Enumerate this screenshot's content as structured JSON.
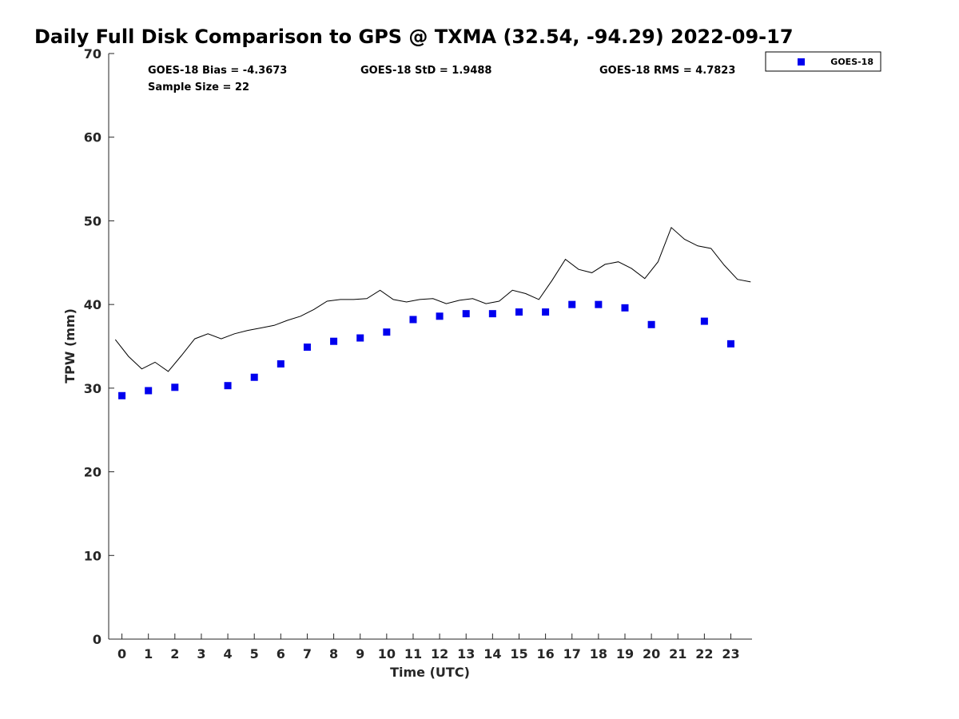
{
  "chart_data": {
    "type": "scatter",
    "title": "Daily Full Disk Comparison to GPS @ TXMA (32.54, -94.29) 2022-09-17",
    "xlabel": "Time (UTC)",
    "ylabel": "TPW (mm)",
    "xlim": [
      -0.5,
      23.8
    ],
    "ylim": [
      0,
      70
    ],
    "xticks": [
      0,
      1,
      2,
      3,
      4,
      5,
      6,
      7,
      8,
      9,
      10,
      11,
      12,
      13,
      14,
      15,
      16,
      17,
      18,
      19,
      20,
      21,
      22,
      23
    ],
    "yticks": [
      0,
      10,
      20,
      30,
      40,
      50,
      60,
      70
    ],
    "grid": false,
    "legend_position": "top-right (outside plot)",
    "stats": {
      "bias": "GOES-18 Bias = -4.3673",
      "std": "GOES-18 StD = 1.9488",
      "rms": "GOES-18 RMS = 4.7823",
      "sample": "Sample Size = 22"
    },
    "series": [
      {
        "name": "GOES-18",
        "kind": "scatter",
        "marker": "square",
        "color": "#0000ee",
        "x": [
          0,
          1,
          2,
          4,
          5,
          6,
          7,
          8,
          9,
          10,
          11,
          12,
          13,
          14,
          15,
          16,
          17,
          18,
          19,
          20,
          22,
          23
        ],
        "y": [
          29.1,
          29.7,
          30.1,
          30.3,
          31.3,
          32.9,
          34.9,
          35.6,
          36.0,
          36.7,
          38.2,
          38.6,
          38.9,
          38.9,
          39.1,
          39.1,
          40.0,
          40.0,
          39.6,
          37.6,
          38.0,
          35.3
        ]
      },
      {
        "kind": "line",
        "color": "#000000",
        "x": [
          -0.25,
          0.25,
          0.75,
          1.25,
          1.75,
          2.25,
          2.75,
          3.25,
          3.75,
          4.25,
          4.75,
          5.25,
          5.75,
          6.25,
          6.75,
          7.25,
          7.75,
          8.25,
          8.75,
          9.25,
          9.75,
          10.25,
          10.75,
          11.25,
          11.75,
          12.25,
          12.75,
          13.25,
          13.75,
          14.25,
          14.75,
          15.25,
          15.75,
          16.25,
          16.75,
          17.25,
          17.75,
          18.25,
          18.75,
          19.25,
          19.75,
          20.25,
          20.75,
          21.25,
          21.75,
          22.25,
          22.75,
          23.25,
          23.75
        ],
        "y": [
          35.8,
          33.8,
          32.3,
          33.1,
          32.0,
          33.9,
          35.9,
          36.5,
          35.9,
          36.5,
          36.9,
          37.2,
          37.5,
          38.1,
          38.6,
          39.4,
          40.4,
          40.6,
          40.6,
          40.7,
          41.7,
          40.6,
          40.3,
          40.6,
          40.7,
          40.1,
          40.5,
          40.7,
          40.1,
          40.4,
          41.7,
          41.3,
          40.6,
          42.9,
          45.4,
          44.2,
          43.8,
          44.8,
          45.1,
          44.3,
          43.1,
          45.1,
          49.2,
          47.8,
          47.0,
          46.7,
          44.7,
          43.0,
          42.7
        ]
      }
    ]
  }
}
